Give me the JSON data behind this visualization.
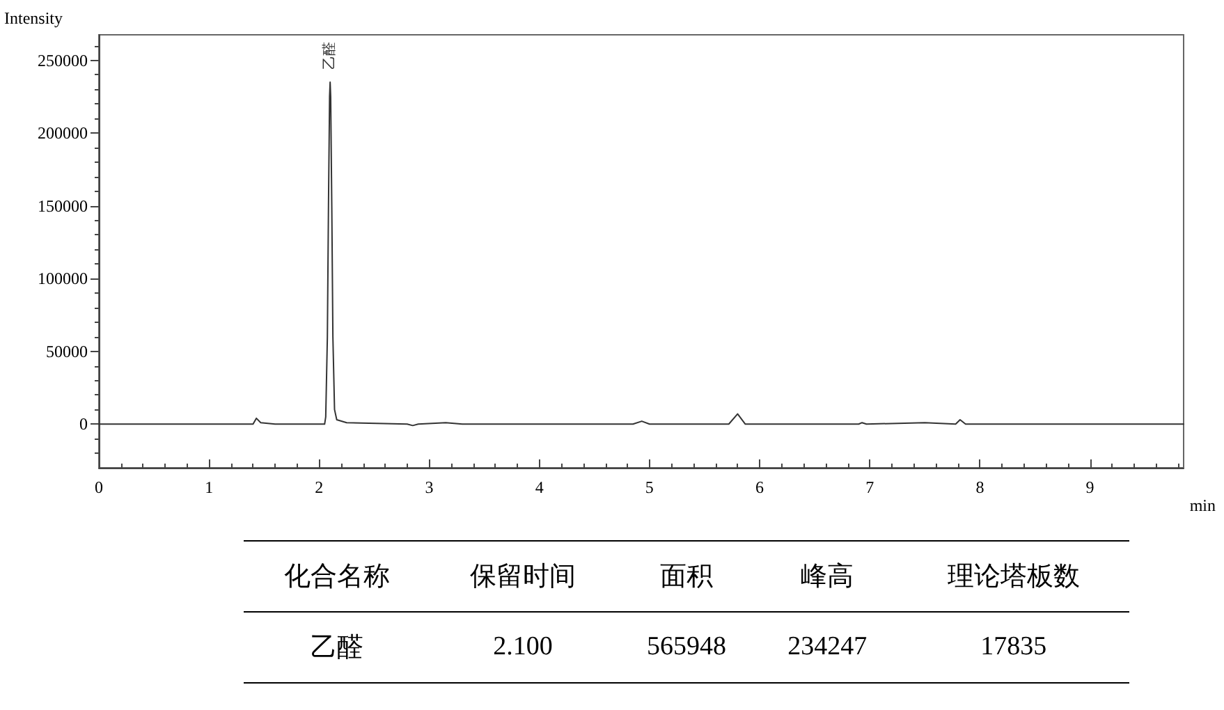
{
  "chart_data": {
    "type": "line",
    "xlabel": "min",
    "ylabel": "Intensity",
    "x": [
      0,
      1.4,
      1.43,
      1.47,
      1.6,
      2.05,
      2.06,
      2.075,
      2.085,
      2.095,
      2.1,
      2.105,
      2.115,
      2.125,
      2.14,
      2.16,
      2.25,
      2.8,
      2.85,
      2.9,
      3.15,
      3.3,
      4.85,
      4.93,
      5.0,
      5.72,
      5.8,
      5.87,
      6.9,
      6.93,
      6.97,
      7.5,
      7.78,
      7.82,
      7.87,
      9.85
    ],
    "values": [
      0,
      0,
      4000,
      1000,
      0,
      0,
      5000,
      60000,
      150000,
      225000,
      235000,
      225000,
      150000,
      60000,
      10000,
      3000,
      1000,
      0,
      -1000,
      0,
      1000,
      0,
      0,
      2000,
      0,
      0,
      7000,
      0,
      0,
      1000,
      0,
      1000,
      0,
      3000,
      0,
      0
    ],
    "color": "#333333",
    "marker": "none",
    "line_style": "solid",
    "grid": false,
    "xlim": [
      0,
      9.85
    ],
    "xticks": [
      0,
      1,
      2,
      3,
      4,
      5,
      6,
      7,
      8,
      9
    ],
    "ylim": [
      -30000,
      267500
    ],
    "yticks": [
      0,
      50000,
      100000,
      150000,
      200000,
      250000
    ],
    "annotations": [
      {
        "text": "乙醛",
        "x": 2.1,
        "y": 235000
      },
      "化合名称",
      "保留时间",
      "面积",
      "峰高",
      "理论塔板数",
      "乙醛",
      "2.100",
      "565948",
      "234247",
      "17835"
    ]
  }
}
